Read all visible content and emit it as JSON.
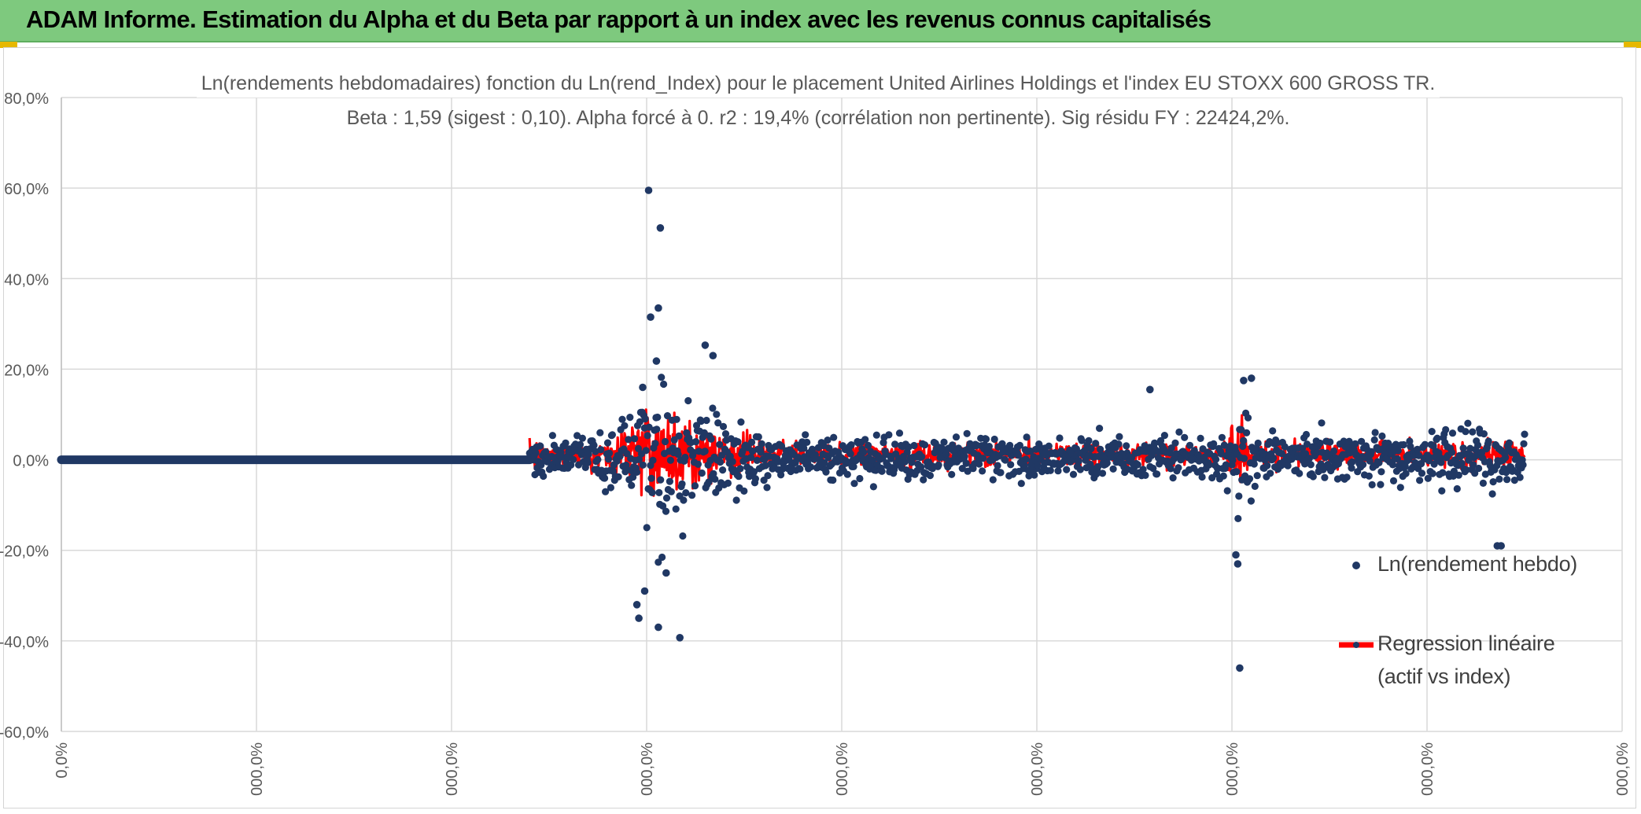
{
  "header": {
    "title": "ADAM Informe. Estimation du Alpha et du Beta par rapport à un index avec les revenus connus capitalisés"
  },
  "colors": {
    "header_bg": "#7ec97e",
    "scatter": "#203864",
    "regression": "#ff0000",
    "grid": "#d9d9d9"
  },
  "chart_data": {
    "type": "scatter",
    "title": "Ln(rendements hebdomadaires) fonction du Ln(rend_Index) pour le placement United Airlines Holdings  et l'index EU STOXX 600 GROSS TR.",
    "subtitle": "Beta : 1,59 (sigest : 0,10).  Alpha forcé à 0. r2 : 19,4% (corrélation non pertinente). Sig résidu FY : 22424,2%.",
    "ylim": [
      -0.6,
      0.8
    ],
    "y_ticks": [
      0.8,
      0.6,
      0.4,
      0.2,
      0.0,
      -0.2,
      -0.4,
      -0.6
    ],
    "y_tick_labels": [
      "80,0%",
      "60,0%",
      "40,0%",
      "20,0%",
      "0,0%",
      "-20,0%",
      "-40,0%",
      "-60,0%"
    ],
    "x_tick_labels": [
      "0,0%",
      "000,0%",
      "000,0%",
      "000,0%",
      "000,0%",
      "000,0%",
      "000,0%",
      "000,0%",
      "000,0%"
    ],
    "x_domain": [
      0,
      8
    ],
    "zero_segment": {
      "x_start": 0,
      "x_end": 2.4
    },
    "data_start": 2.4,
    "data_end": 7.5,
    "notable_points": [
      {
        "x": 3.01,
        "y": 0.595
      },
      {
        "x": 3.07,
        "y": 0.512
      },
      {
        "x": 3.06,
        "y": 0.335
      },
      {
        "x": 3.02,
        "y": 0.315
      },
      {
        "x": 3.3,
        "y": 0.253
      },
      {
        "x": 3.34,
        "y": 0.23
      },
      {
        "x": 3.05,
        "y": 0.218
      },
      {
        "x": 2.99,
        "y": -0.29
      },
      {
        "x": 2.96,
        "y": -0.35
      },
      {
        "x": 2.95,
        "y": -0.32
      },
      {
        "x": 3.06,
        "y": -0.37
      },
      {
        "x": 3.17,
        "y": -0.393
      },
      {
        "x": 3.1,
        "y": -0.25
      },
      {
        "x": 6.04,
        "y": -0.46
      },
      {
        "x": 6.03,
        "y": -0.23
      },
      {
        "x": 6.02,
        "y": -0.21
      },
      {
        "x": 6.06,
        "y": 0.175
      },
      {
        "x": 6.1,
        "y": 0.18
      },
      {
        "x": 7.36,
        "y": -0.19
      },
      {
        "x": 7.38,
        "y": -0.19
      },
      {
        "x": 5.58,
        "y": 0.155
      },
      {
        "x": 2.98,
        "y": 0.16
      }
    ],
    "series": [
      {
        "name": "Ln(rendement hebdo)",
        "style": "markers"
      },
      {
        "name": "Regression linéaire (actif vs index)",
        "style": "line"
      }
    ],
    "legend": {
      "scatter_label": "Ln(rendement hebdo)",
      "regression_line1": "Regression linéaire",
      "regression_line2": "(actif vs index)",
      "placement": "right"
    }
  }
}
